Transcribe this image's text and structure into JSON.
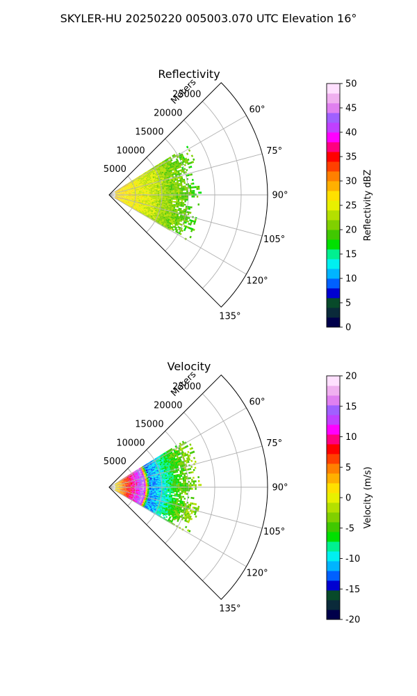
{
  "figure": {
    "title": "SKYLER-HU  20250220  005003.070 UTC Elevation 16°"
  },
  "chart_data": [
    {
      "type": "heatmap",
      "projection": "polar-sector",
      "title": "Reflectivity",
      "range_label": "Meters",
      "range_ticks": [
        5000,
        10000,
        15000,
        20000,
        25000
      ],
      "range_lim": [
        0,
        30000
      ],
      "azimuth_lim": [
        45,
        135
      ],
      "azimuth_ticks": [
        "60°",
        "75°",
        "90°",
        "105°",
        "120°",
        "135°"
      ],
      "azimuth_tick_values": [
        60,
        75,
        90,
        105,
        120,
        135
      ],
      "grid": true,
      "colorbar": {
        "label": "Reflectivity dBZ",
        "range": [
          0,
          50
        ],
        "ticks": [
          0,
          5,
          10,
          15,
          20,
          25,
          30,
          35,
          40,
          45,
          50
        ],
        "colors": [
          "#00004a",
          "#0a2a3a",
          "#084a2a",
          "#0000d0",
          "#0060ff",
          "#00b4ff",
          "#00f0f0",
          "#00f090",
          "#00e000",
          "#40c800",
          "#80d000",
          "#b4e000",
          "#e8f000",
          "#ffe000",
          "#ffb000",
          "#ff8000",
          "#ff4000",
          "#ff0000",
          "#ff0080",
          "#ff00ff",
          "#c040ff",
          "#a060ff",
          "#e080f0",
          "#f0b0f0",
          "#ffe0ff"
        ]
      },
      "field": {
        "coverage_azimuth": [
          58,
          120
        ],
        "coverage_range": [
          0,
          16000
        ],
        "stops": [
          {
            "range": 0,
            "value": 28
          },
          {
            "range": 4000,
            "value": 26
          },
          {
            "range": 8000,
            "value": 24
          },
          {
            "range": 12000,
            "value": 21
          },
          {
            "range": 16000,
            "value": 19
          }
        ]
      }
    },
    {
      "type": "heatmap",
      "projection": "polar-sector",
      "title": "Velocity",
      "range_label": "Meters",
      "range_ticks": [
        5000,
        10000,
        15000,
        20000,
        25000
      ],
      "range_lim": [
        0,
        30000
      ],
      "azimuth_lim": [
        45,
        135
      ],
      "azimuth_ticks": [
        "60°",
        "75°",
        "90°",
        "105°",
        "120°",
        "135°"
      ],
      "azimuth_tick_values": [
        60,
        75,
        90,
        105,
        120,
        135
      ],
      "grid": true,
      "colorbar": {
        "label": "Velocity (m/s)",
        "range": [
          -20,
          20
        ],
        "ticks": [
          -20,
          -15,
          -10,
          -5,
          0,
          5,
          10,
          15,
          20
        ],
        "colors": [
          "#00004a",
          "#0a2a3a",
          "#084a2a",
          "#0000d0",
          "#0060ff",
          "#00b4ff",
          "#00f0f0",
          "#00f090",
          "#00e000",
          "#40c800",
          "#80d000",
          "#b4e000",
          "#e8f000",
          "#ffe000",
          "#ffb000",
          "#ff8000",
          "#ff4000",
          "#ff0000",
          "#ff0080",
          "#ff00ff",
          "#c040ff",
          "#a060ff",
          "#e080f0",
          "#f0b0f0",
          "#ffe0ff"
        ]
      },
      "field": {
        "coverage_azimuth": [
          58,
          120
        ],
        "coverage_range": [
          0,
          16000
        ],
        "stops": [
          {
            "range": 0,
            "value": -2
          },
          {
            "range": 1500,
            "value": 2
          },
          {
            "range": 3000,
            "value": 6
          },
          {
            "range": 4500,
            "value": 10
          },
          {
            "range": 5500,
            "value": 12
          },
          {
            "range": 6500,
            "value": 16
          },
          {
            "range": 7500,
            "value": -12
          },
          {
            "range": 9000,
            "value": -11
          },
          {
            "range": 11000,
            "value": -8
          },
          {
            "range": 13000,
            "value": -5
          },
          {
            "range": 16000,
            "value": -3
          }
        ]
      }
    }
  ]
}
